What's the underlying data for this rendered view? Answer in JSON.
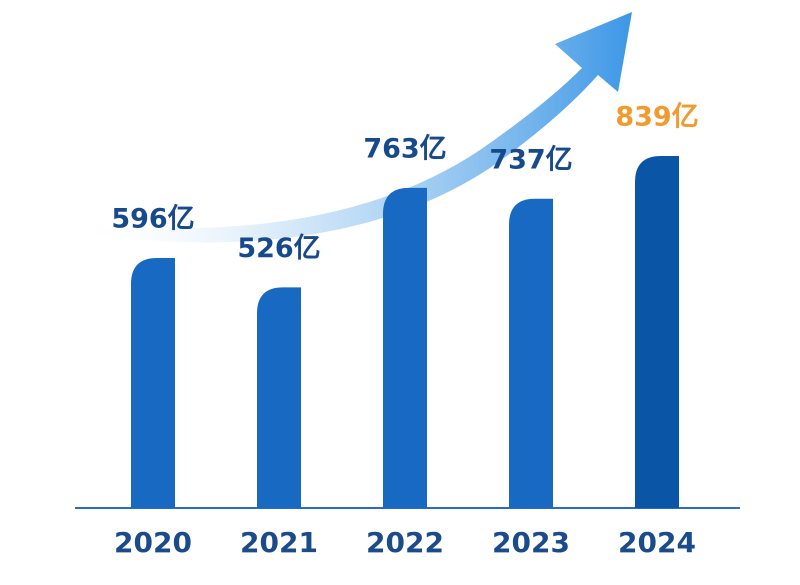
{
  "chart_data": {
    "type": "bar",
    "categories": [
      "2020",
      "2021",
      "2022",
      "2023",
      "2024"
    ],
    "values": [
      596,
      526,
      763,
      737,
      839
    ],
    "value_labels": [
      "596亿",
      "526亿",
      "763亿",
      "737亿",
      "839亿"
    ],
    "colors": [
      "#1769c2",
      "#1769c2",
      "#1769c2",
      "#1769c2",
      "#0b55a6"
    ],
    "label_colors": [
      "#174a8c",
      "#174a8c",
      "#174a8c",
      "#174a8c",
      "#f39a2e"
    ]
  }
}
